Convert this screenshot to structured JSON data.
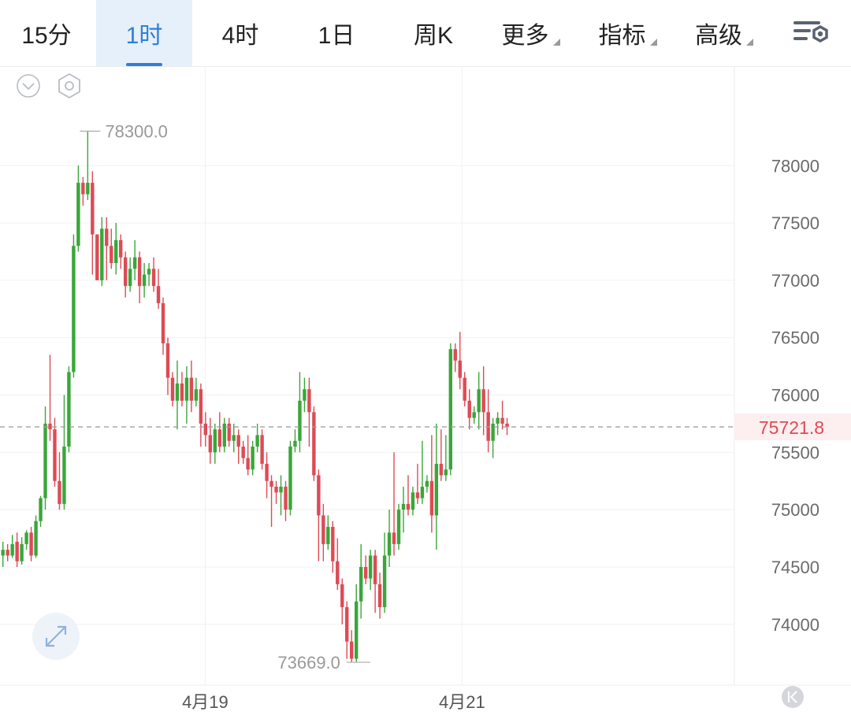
{
  "tabs": [
    {
      "label": "15分",
      "active": false,
      "dropdown": false
    },
    {
      "label": "1时",
      "active": true,
      "dropdown": false
    },
    {
      "label": "4时",
      "active": false,
      "dropdown": false
    },
    {
      "label": "1日",
      "active": false,
      "dropdown": false
    },
    {
      "label": "周K",
      "active": false,
      "dropdown": false
    },
    {
      "label": "更多",
      "active": false,
      "dropdown": true
    },
    {
      "label": "指标",
      "active": false,
      "dropdown": true
    },
    {
      "label": "高级",
      "active": false,
      "dropdown": true
    }
  ],
  "icons": {
    "settings": "chart-settings-icon",
    "collapse": "chevron-down-circle-icon",
    "indicator": "hexagon-settings-icon",
    "expand": "expand-arrows-icon",
    "scroll_start": "skip-to-start-icon"
  },
  "colors": {
    "up": "#3aa63a",
    "down": "#dd4b55",
    "accent": "#2f7fd8",
    "price_label_bg": "#fdeef0"
  },
  "chart_data": {
    "type": "candlestick",
    "interval": "1时",
    "y_ticks": [
      78000,
      77500,
      77000,
      76500,
      76000,
      75500,
      75000,
      74500,
      74000
    ],
    "x_ticks": [
      {
        "label": "4月19",
        "index": 43.3
      },
      {
        "label": "4月21",
        "index": 97.8
      }
    ],
    "ylim": [
      73470,
      78860
    ],
    "high_marker": {
      "label": "78300.0",
      "value": 78300,
      "index": 15
    },
    "low_marker": {
      "label": "73669.0",
      "value": 73669,
      "index": 79
    },
    "last_price": {
      "label": "75721.8",
      "value": 75721.8
    },
    "candles": [
      [
        74600,
        74650,
        74500,
        74720
      ],
      [
        74650,
        74600,
        74550,
        74700
      ],
      [
        74600,
        74700,
        74580,
        74780
      ],
      [
        74720,
        74550,
        74500,
        74800
      ],
      [
        74550,
        74700,
        74520,
        74760
      ],
      [
        74700,
        74800,
        74650,
        74820
      ],
      [
        74800,
        74600,
        74550,
        74850
      ],
      [
        74600,
        74900,
        74580,
        74950
      ],
      [
        74900,
        75100,
        74850,
        75120
      ],
      [
        75100,
        75750,
        75000,
        75900
      ],
      [
        75750,
        75700,
        75600,
        76350
      ],
      [
        75700,
        75250,
        75200,
        75800
      ],
      [
        75250,
        75050,
        75000,
        75500
      ],
      [
        75050,
        75550,
        75000,
        76000
      ],
      [
        75550,
        76200,
        75500,
        76250
      ],
      [
        76200,
        77300,
        76150,
        77400
      ],
      [
        77300,
        77850,
        77250,
        78000
      ],
      [
        77850,
        77750,
        77650,
        77900
      ],
      [
        77750,
        77850,
        77700,
        78300
      ],
      [
        77850,
        77400,
        77050,
        77950
      ],
      [
        77400,
        77000,
        77000,
        77400
      ],
      [
        77000,
        77450,
        76950,
        77550
      ],
      [
        77450,
        77300,
        77000,
        77550
      ],
      [
        77300,
        77150,
        77100,
        77450
      ],
      [
        77150,
        77350,
        77050,
        77500
      ],
      [
        77350,
        77200,
        77100,
        77400
      ],
      [
        77200,
        76950,
        76850,
        77250
      ],
      [
        76950,
        77100,
        76900,
        77200
      ],
      [
        77100,
        77200,
        77000,
        77350
      ],
      [
        77200,
        76950,
        76800,
        77250
      ],
      [
        76950,
        77050,
        76850,
        77150
      ],
      [
        77050,
        77100,
        76950,
        77150
      ],
      [
        77100,
        76950,
        76900,
        77200
      ],
      [
        76950,
        76800,
        76750,
        77100
      ],
      [
        76800,
        76450,
        76350,
        76850
      ],
      [
        76450,
        76150,
        76000,
        76500
      ],
      [
        76150,
        75950,
        75900,
        76200
      ],
      [
        75950,
        76100,
        75700,
        76300
      ],
      [
        76100,
        75950,
        75900,
        76200
      ],
      [
        75950,
        76150,
        75750,
        76250
      ],
      [
        76150,
        75950,
        75850,
        76300
      ],
      [
        75950,
        76050,
        75900,
        76150
      ],
      [
        76050,
        75750,
        75550,
        76100
      ],
      [
        75750,
        75650,
        75550,
        75850
      ],
      [
        75650,
        75500,
        75400,
        75800
      ],
      [
        75500,
        75700,
        75400,
        75750
      ],
      [
        75700,
        75550,
        75500,
        75850
      ],
      [
        75550,
        75750,
        75500,
        75800
      ],
      [
        75750,
        75600,
        75550,
        75800
      ],
      [
        75600,
        75650,
        75500,
        75750
      ],
      [
        75650,
        75550,
        75400,
        75700
      ],
      [
        75550,
        75450,
        75400,
        75600
      ],
      [
        75450,
        75350,
        75300,
        75650
      ],
      [
        75350,
        75550,
        75300,
        75600
      ],
      [
        75550,
        75650,
        75500,
        75750
      ],
      [
        75650,
        75400,
        75350,
        75700
      ],
      [
        75400,
        75250,
        75100,
        75500
      ],
      [
        75250,
        75200,
        74850,
        75300
      ],
      [
        75200,
        75150,
        75050,
        75250
      ],
      [
        75150,
        75200,
        74950,
        75300
      ],
      [
        75200,
        75000,
        74900,
        75250
      ],
      [
        75000,
        75550,
        74950,
        75600
      ],
      [
        75550,
        75600,
        75500,
        75700
      ],
      [
        75600,
        75950,
        75500,
        76200
      ],
      [
        75950,
        76050,
        75850,
        76150
      ],
      [
        76050,
        75850,
        75550,
        76150
      ],
      [
        75850,
        75300,
        75250,
        75900
      ],
      [
        75300,
        74950,
        74550,
        75350
      ],
      [
        74950,
        74700,
        74550,
        75050
      ],
      [
        74700,
        74850,
        74650,
        74950
      ],
      [
        74850,
        74550,
        74450,
        74900
      ],
      [
        74550,
        74350,
        74300,
        74750
      ],
      [
        74350,
        74150,
        74000,
        74400
      ],
      [
        74150,
        73850,
        73700,
        74200
      ],
      [
        73850,
        73700,
        73669,
        73950
      ],
      [
        73700,
        74200,
        73669,
        74350
      ],
      [
        74200,
        74500,
        74050,
        74700
      ],
      [
        74500,
        74400,
        74350,
        74600
      ],
      [
        74400,
        74600,
        74300,
        74650
      ],
      [
        74600,
        74350,
        74100,
        74650
      ],
      [
        74350,
        74150,
        74050,
        74450
      ],
      [
        74150,
        74600,
        74100,
        74800
      ],
      [
        74600,
        74800,
        74500,
        75000
      ],
      [
        74800,
        74700,
        74600,
        75500
      ],
      [
        74700,
        75000,
        74650,
        75050
      ],
      [
        75000,
        75050,
        74800,
        75200
      ],
      [
        75050,
        75000,
        74950,
        75300
      ],
      [
        75000,
        75150,
        74950,
        75200
      ],
      [
        75150,
        75100,
        75050,
        75400
      ],
      [
        75100,
        75200,
        75050,
        75600
      ],
      [
        75200,
        75250,
        75150,
        75300
      ],
      [
        75250,
        74950,
        74800,
        75650
      ],
      [
        74950,
        75400,
        74650,
        75750
      ],
      [
        75400,
        75300,
        75250,
        75700
      ],
      [
        75300,
        75350,
        75250,
        75650
      ],
      [
        75350,
        76400,
        75300,
        76450
      ],
      [
        76400,
        76300,
        76200,
        76450
      ],
      [
        76300,
        76150,
        76050,
        76550
      ],
      [
        76150,
        75950,
        75900,
        76200
      ],
      [
        75950,
        75800,
        75700,
        76050
      ],
      [
        75800,
        75850,
        75750,
        75900
      ],
      [
        75850,
        76050,
        75700,
        76200
      ],
      [
        76050,
        75850,
        75650,
        76250
      ],
      [
        75850,
        75600,
        75500,
        76050
      ],
      [
        75600,
        75750,
        75450,
        75800
      ],
      [
        75750,
        75800,
        75650,
        75850
      ],
      [
        75800,
        75750,
        75700,
        75950
      ],
      [
        75750,
        75721.8,
        75650,
        75800
      ]
    ]
  }
}
